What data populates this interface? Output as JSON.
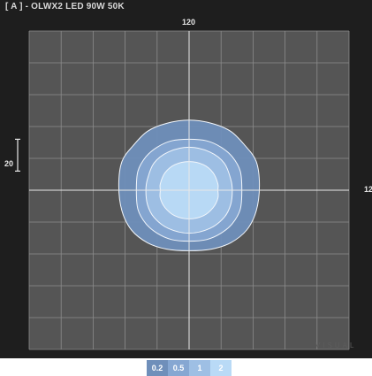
{
  "title": "[ A ] - OLWX2 LED 90W 50K",
  "watermark": "VISUAL",
  "top_tick_label": "120",
  "right_tick_label": "12",
  "scale_bar_label": "20",
  "colors": {
    "background": "#1e1e1e",
    "plot_area": "#555555",
    "grid": "#8c8c8c",
    "axis": "#e8e8e8",
    "contour_0_2": "#6f8fba",
    "contour_0_5": "#86a7d2",
    "contour_1": "#9ebfe4",
    "contour_2": "#b9daf6"
  },
  "chart_data": {
    "type": "isoline_contour",
    "title": "[ A ] - OLWX2 LED 90W 50K",
    "units": "",
    "grid": true,
    "x_range": [
      -100,
      100
    ],
    "y_range": [
      -100,
      100
    ],
    "grid_spacing": 20,
    "axis_tick_labels": {
      "top": "120",
      "right": "12"
    },
    "scale_reference": 20,
    "levels": [
      {
        "label": "0.2",
        "value": 0.2,
        "shape": [
          [
            0,
            44
          ],
          [
            14,
            42
          ],
          [
            26,
            37
          ],
          [
            35,
            28
          ],
          [
            42,
            18
          ],
          [
            44,
            3
          ],
          [
            42,
            -13
          ],
          [
            36,
            -25
          ],
          [
            26,
            -33
          ],
          [
            14,
            -37
          ],
          [
            0,
            -38
          ],
          [
            -14,
            -37
          ],
          [
            -26,
            -33
          ],
          [
            -36,
            -25
          ],
          [
            -42,
            -13
          ],
          [
            -44,
            3
          ],
          [
            -42,
            18
          ],
          [
            -35,
            28
          ],
          [
            -26,
            37
          ],
          [
            -14,
            42
          ]
        ]
      },
      {
        "label": "0.5",
        "value": 0.5,
        "shape": [
          [
            0,
            32
          ],
          [
            11,
            31
          ],
          [
            20,
            27
          ],
          [
            27,
            21
          ],
          [
            32,
            12
          ],
          [
            33,
            0
          ],
          [
            32,
            -12
          ],
          [
            27,
            -21
          ],
          [
            20,
            -27
          ],
          [
            11,
            -31
          ],
          [
            0,
            -32
          ],
          [
            -11,
            -31
          ],
          [
            -20,
            -27
          ],
          [
            -27,
            -21
          ],
          [
            -32,
            -12
          ],
          [
            -33,
            0
          ],
          [
            -32,
            12
          ],
          [
            -27,
            21
          ],
          [
            -20,
            27
          ],
          [
            -11,
            31
          ]
        ]
      },
      {
        "label": "1",
        "value": 1,
        "shape": [
          [
            0,
            27
          ],
          [
            13,
            24
          ],
          [
            22,
            17
          ],
          [
            26,
            7
          ],
          [
            27,
            0
          ],
          [
            26,
            -9
          ],
          [
            22,
            -17
          ],
          [
            13,
            -24
          ],
          [
            0,
            -27
          ],
          [
            -13,
            -24
          ],
          [
            -22,
            -17
          ],
          [
            -26,
            -9
          ],
          [
            -27,
            0
          ],
          [
            -26,
            7
          ],
          [
            -22,
            17
          ],
          [
            -13,
            24
          ]
        ]
      },
      {
        "label": "2",
        "value": 2,
        "shape": [
          [
            0,
            18
          ],
          [
            9,
            16
          ],
          [
            15,
            11
          ],
          [
            18,
            4
          ],
          [
            18,
            0
          ],
          [
            18,
            -5
          ],
          [
            15,
            -11
          ],
          [
            9,
            -16
          ],
          [
            0,
            -18
          ],
          [
            -9,
            -16
          ],
          [
            -15,
            -11
          ],
          [
            -18,
            -5
          ],
          [
            -18,
            0
          ],
          [
            -18,
            4
          ],
          [
            -15,
            11
          ],
          [
            -9,
            16
          ]
        ]
      }
    ],
    "legend": [
      "0.2",
      "0.5",
      "1",
      "2"
    ]
  }
}
